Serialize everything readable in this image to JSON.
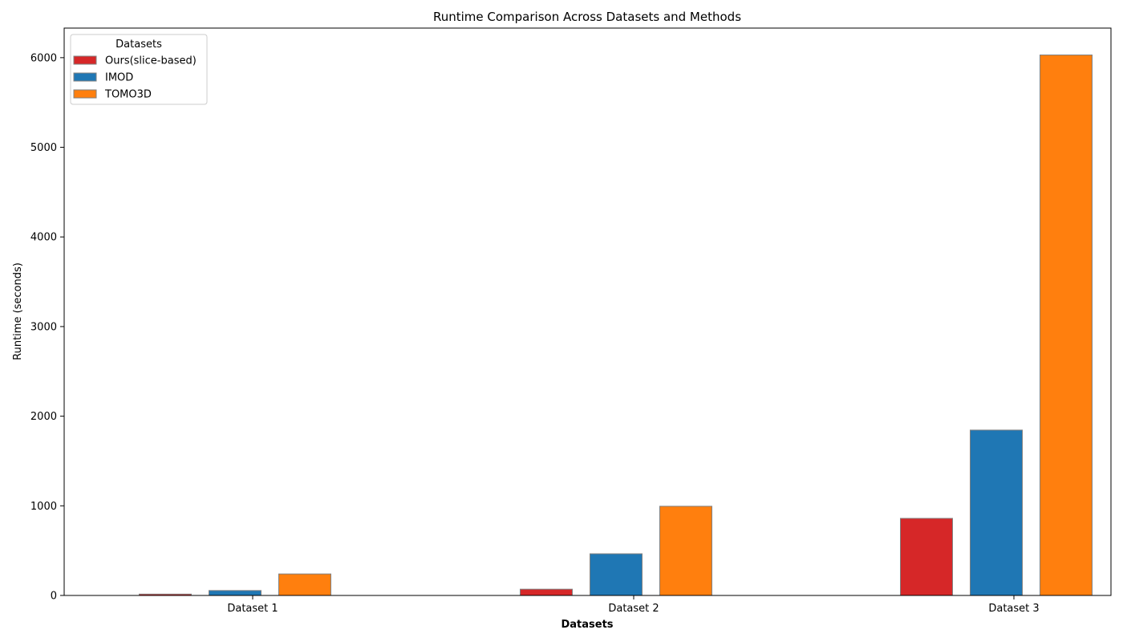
{
  "chart_data": {
    "type": "bar",
    "title": "Runtime Comparison Across Datasets and Methods",
    "xlabel": "Datasets",
    "ylabel": "Runtime (seconds)",
    "categories": [
      "Dataset 1",
      "Dataset 2",
      "Dataset 3"
    ],
    "series": [
      {
        "name": "Ours(slice-based)",
        "color": "#d62728",
        "values": [
          15,
          70,
          860
        ]
      },
      {
        "name": "IMOD",
        "color": "#1f77b4",
        "values": [
          55,
          465,
          1845
        ]
      },
      {
        "name": "TOMO3D",
        "color": "#ff7f0e",
        "values": [
          240,
          995,
          6030
        ]
      }
    ],
    "ylim": [
      0,
      6330
    ],
    "yticks": [
      0,
      1000,
      2000,
      3000,
      4000,
      5000,
      6000
    ],
    "legend": {
      "title": "Datasets",
      "position": "top-left"
    },
    "grid": false
  }
}
